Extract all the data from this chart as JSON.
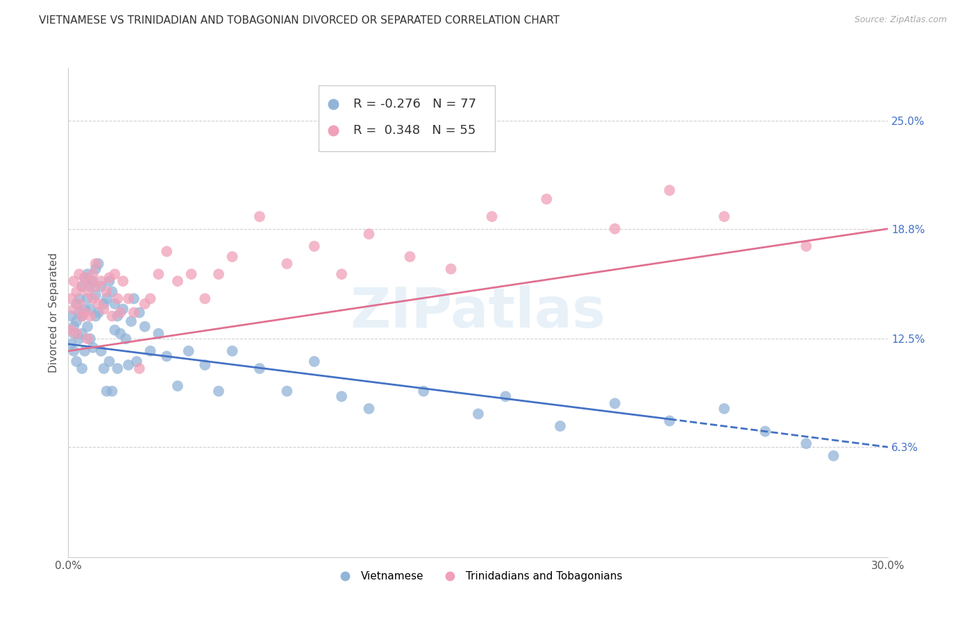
{
  "title": "VIETNAMESE VS TRINIDADIAN AND TOBAGONIAN DIVORCED OR SEPARATED CORRELATION CHART",
  "source": "Source: ZipAtlas.com",
  "ylabel": "Divorced or Separated",
  "x_min": 0.0,
  "x_max": 0.3,
  "y_min": 0.0,
  "y_max": 0.28,
  "x_ticks": [
    0.0,
    0.05,
    0.1,
    0.15,
    0.2,
    0.25,
    0.3
  ],
  "right_yticks": [
    0.063,
    0.125,
    0.188,
    0.25
  ],
  "right_ytick_labels": [
    "6.3%",
    "12.5%",
    "18.8%",
    "25.0%"
  ],
  "grid_color": "#d0d0d0",
  "background_color": "#ffffff",
  "blue_color": "#92b4d8",
  "pink_color": "#f0a0b8",
  "blue_line_color": "#4472c4",
  "pink_line_color": "#e07090",
  "R_blue": -0.276,
  "N_blue": 77,
  "R_pink": 0.348,
  "N_pink": 55,
  "legend_label_blue": "Vietnamese",
  "legend_label_pink": "Trinidadians and Tobagonians",
  "watermark": "ZIPatlas",
  "blue_line_start_x": 0.0,
  "blue_line_start_y": 0.122,
  "blue_line_solid_end_x": 0.22,
  "blue_line_solid_end_y": 0.079,
  "blue_line_dash_end_x": 0.3,
  "blue_line_dash_end_y": 0.063,
  "pink_line_start_x": 0.0,
  "pink_line_start_y": 0.118,
  "pink_line_end_x": 0.3,
  "pink_line_end_y": 0.188,
  "blue_scatter_x": [
    0.001,
    0.001,
    0.002,
    0.002,
    0.002,
    0.003,
    0.003,
    0.003,
    0.004,
    0.004,
    0.004,
    0.005,
    0.005,
    0.005,
    0.005,
    0.006,
    0.006,
    0.006,
    0.007,
    0.007,
    0.007,
    0.008,
    0.008,
    0.008,
    0.009,
    0.009,
    0.01,
    0.01,
    0.01,
    0.011,
    0.011,
    0.012,
    0.012,
    0.013,
    0.013,
    0.014,
    0.014,
    0.015,
    0.015,
    0.016,
    0.016,
    0.017,
    0.017,
    0.018,
    0.018,
    0.019,
    0.02,
    0.021,
    0.022,
    0.023,
    0.024,
    0.025,
    0.026,
    0.028,
    0.03,
    0.033,
    0.036,
    0.04,
    0.044,
    0.05,
    0.055,
    0.06,
    0.07,
    0.08,
    0.09,
    0.1,
    0.11,
    0.13,
    0.15,
    0.16,
    0.18,
    0.2,
    0.22,
    0.24,
    0.255,
    0.27,
    0.28
  ],
  "blue_scatter_y": [
    0.138,
    0.122,
    0.132,
    0.118,
    0.128,
    0.145,
    0.112,
    0.135,
    0.14,
    0.125,
    0.148,
    0.155,
    0.108,
    0.138,
    0.128,
    0.16,
    0.118,
    0.142,
    0.162,
    0.132,
    0.148,
    0.155,
    0.125,
    0.142,
    0.158,
    0.12,
    0.165,
    0.138,
    0.15,
    0.168,
    0.14,
    0.155,
    0.118,
    0.145,
    0.108,
    0.148,
    0.095,
    0.158,
    0.112,
    0.152,
    0.095,
    0.145,
    0.13,
    0.138,
    0.108,
    0.128,
    0.142,
    0.125,
    0.11,
    0.135,
    0.148,
    0.112,
    0.14,
    0.132,
    0.118,
    0.128,
    0.115,
    0.098,
    0.118,
    0.11,
    0.095,
    0.118,
    0.108,
    0.095,
    0.112,
    0.092,
    0.085,
    0.095,
    0.082,
    0.092,
    0.075,
    0.088,
    0.078,
    0.085,
    0.072,
    0.065,
    0.058
  ],
  "pink_scatter_x": [
    0.001,
    0.001,
    0.002,
    0.002,
    0.003,
    0.003,
    0.004,
    0.004,
    0.005,
    0.005,
    0.006,
    0.006,
    0.007,
    0.007,
    0.008,
    0.008,
    0.009,
    0.009,
    0.01,
    0.01,
    0.011,
    0.012,
    0.013,
    0.014,
    0.015,
    0.016,
    0.017,
    0.018,
    0.019,
    0.02,
    0.022,
    0.024,
    0.026,
    0.028,
    0.03,
    0.033,
    0.036,
    0.04,
    0.045,
    0.05,
    0.055,
    0.06,
    0.07,
    0.08,
    0.09,
    0.1,
    0.11,
    0.125,
    0.14,
    0.155,
    0.175,
    0.2,
    0.22,
    0.24,
    0.27
  ],
  "pink_scatter_y": [
    0.148,
    0.13,
    0.142,
    0.158,
    0.152,
    0.128,
    0.145,
    0.162,
    0.138,
    0.155,
    0.16,
    0.14,
    0.152,
    0.125,
    0.158,
    0.138,
    0.162,
    0.148,
    0.155,
    0.168,
    0.145,
    0.158,
    0.142,
    0.152,
    0.16,
    0.138,
    0.162,
    0.148,
    0.14,
    0.158,
    0.148,
    0.14,
    0.108,
    0.145,
    0.148,
    0.162,
    0.175,
    0.158,
    0.162,
    0.148,
    0.162,
    0.172,
    0.195,
    0.168,
    0.178,
    0.162,
    0.185,
    0.172,
    0.165,
    0.195,
    0.205,
    0.188,
    0.21,
    0.195,
    0.178
  ]
}
